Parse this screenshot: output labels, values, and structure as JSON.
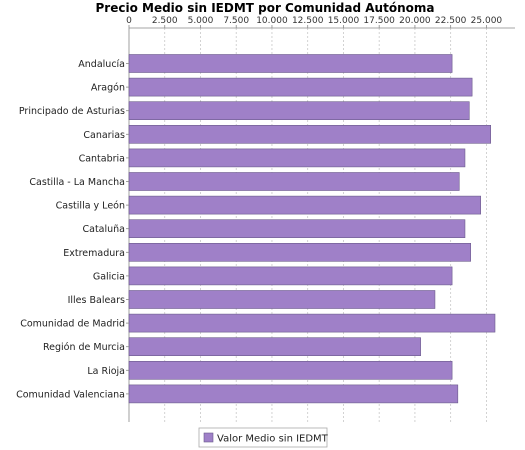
{
  "chart_data": {
    "type": "bar",
    "orientation": "horizontal",
    "title": "Precio Medio sin IEDMT por Comunidad Autónoma",
    "xlabel": "",
    "ylabel": "",
    "xlim": [
      0,
      27000
    ],
    "xticks": [
      {
        "value": 0,
        "label": "0"
      },
      {
        "value": 2500,
        "label": "2.500"
      },
      {
        "value": 5000,
        "label": "5.000"
      },
      {
        "value": 7500,
        "label": "7.500"
      },
      {
        "value": 10000,
        "label": "10.000"
      },
      {
        "value": 12500,
        "label": "12.500"
      },
      {
        "value": 15000,
        "label": "15.000"
      },
      {
        "value": 17500,
        "label": "17.500"
      },
      {
        "value": 20000,
        "label": "20.000"
      },
      {
        "value": 22500,
        "label": "22.500"
      },
      {
        "value": 25000,
        "label": "25.000"
      }
    ],
    "axis_position": "top",
    "grid": true,
    "legend_position": "bottom",
    "categories": [
      "Andalucía",
      "Aragón",
      "Principado de Asturias",
      "Canarias",
      "Cantabria",
      "Castilla - La Mancha",
      "Castilla y León",
      "Cataluña",
      "Extremadura",
      "Galicia",
      "Illes Balears",
      "Comunidad de Madrid",
      "Región de Murcia",
      "La Rioja",
      "Comunidad Valenciana"
    ],
    "series": [
      {
        "name": "Valor Medio sin IEDMT",
        "color": "#9f80c8",
        "values": [
          22600,
          24000,
          23800,
          25300,
          23500,
          23100,
          24600,
          23500,
          23900,
          22600,
          21400,
          25600,
          20400,
          22600,
          23000
        ]
      }
    ]
  },
  "colors": {
    "bar_fill": "#9f80c8",
    "bar_stroke": "#6a5a8a",
    "grid": "#c8c8c8",
    "axis": "#888888",
    "legend_border": "#aaaaaa"
  }
}
